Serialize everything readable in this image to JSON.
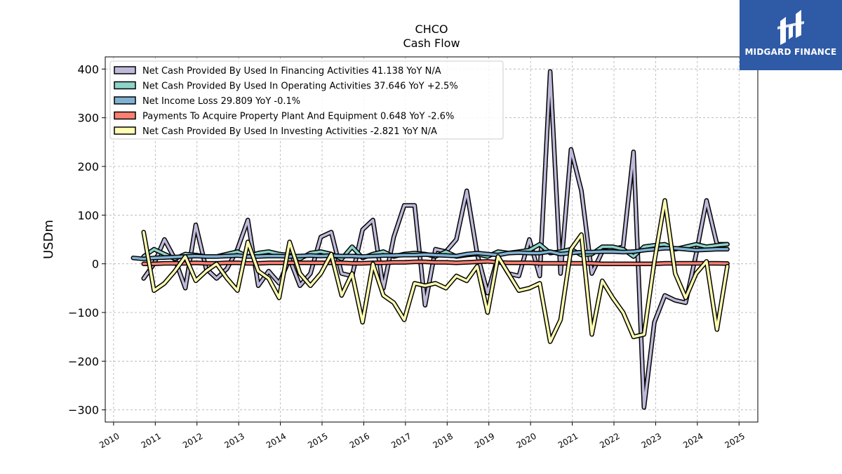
{
  "chart_data": {
    "type": "line",
    "title": "CHCO",
    "subtitle": "Cash Flow",
    "ylabel": "USDm",
    "xlabel": "",
    "ylim": [
      -325,
      425
    ],
    "xlim": [
      2009.8,
      2025.45
    ],
    "yticks": [
      -300,
      -200,
      -100,
      0,
      100,
      200,
      300,
      400
    ],
    "ytick_labels": [
      "−300",
      "−200",
      "−100",
      "0",
      "100",
      "200",
      "300",
      "400"
    ],
    "xticks": [
      2010,
      2011,
      2012,
      2013,
      2014,
      2015,
      2016,
      2017,
      2018,
      2019,
      2020,
      2021,
      2022,
      2023,
      2024,
      2025
    ],
    "xtick_labels": [
      "2010",
      "2011",
      "2012",
      "2013",
      "2014",
      "2015",
      "2016",
      "2017",
      "2018",
      "2019",
      "2020",
      "2021",
      "2022",
      "2023",
      "2024",
      "2025"
    ],
    "grid": true,
    "legend_position": "top-left",
    "series": [
      {
        "name": "Net Cash Provided By Used In Financing Activities",
        "legend": "Net Cash Provided By Used In Financing Activities  41.138 YoY N/A",
        "color": "#bebada",
        "x": [
          2010.72,
          2010.97,
          2011.22,
          2011.47,
          2011.72,
          2011.97,
          2012.22,
          2012.47,
          2012.72,
          2012.97,
          2013.22,
          2013.47,
          2013.72,
          2013.97,
          2014.22,
          2014.47,
          2014.72,
          2014.97,
          2015.22,
          2015.47,
          2015.72,
          2015.97,
          2016.22,
          2016.47,
          2016.72,
          2016.97,
          2017.22,
          2017.47,
          2017.72,
          2017.97,
          2018.22,
          2018.47,
          2018.72,
          2018.97,
          2019.22,
          2019.47,
          2019.72,
          2019.97,
          2020.22,
          2020.47,
          2020.72,
          2020.97,
          2021.22,
          2021.47,
          2021.72,
          2021.97,
          2022.22,
          2022.47,
          2022.72,
          2022.97,
          2023.22,
          2023.47,
          2023.72,
          2023.97,
          2024.22,
          2024.47,
          2024.72
        ],
        "values": [
          -30,
          0,
          50,
          10,
          -50,
          80,
          -10,
          -30,
          -10,
          30,
          90,
          -45,
          -15,
          -40,
          10,
          -45,
          -20,
          55,
          65,
          -20,
          -25,
          70,
          90,
          -50,
          55,
          120,
          120,
          -85,
          30,
          25,
          50,
          150,
          20,
          -60,
          15,
          -20,
          -25,
          50,
          -25,
          395,
          -20,
          235,
          150,
          -20,
          25,
          30,
          35,
          230,
          -295,
          -120,
          -65,
          -75,
          -80,
          20,
          130,
          40,
          40
        ]
      },
      {
        "name": "Net Cash Provided By Used In Operating Activities",
        "legend": "Net Cash Provided By Used In Operating Activities  37.646 YoY +2.5%",
        "color": "#8dd3c7",
        "x": [
          2010.72,
          2010.97,
          2011.22,
          2011.47,
          2011.72,
          2011.97,
          2012.22,
          2012.47,
          2012.72,
          2012.97,
          2013.22,
          2013.47,
          2013.72,
          2013.97,
          2014.22,
          2014.47,
          2014.72,
          2014.97,
          2015.22,
          2015.47,
          2015.72,
          2015.97,
          2016.22,
          2016.47,
          2016.72,
          2016.97,
          2017.22,
          2017.47,
          2017.72,
          2017.97,
          2018.22,
          2018.47,
          2018.72,
          2018.97,
          2019.22,
          2019.47,
          2019.72,
          2019.97,
          2020.22,
          2020.47,
          2020.72,
          2020.97,
          2021.22,
          2021.47,
          2021.72,
          2021.97,
          2022.22,
          2022.47,
          2022.72,
          2022.97,
          2023.22,
          2023.47,
          2023.72,
          2023.97,
          2024.22,
          2024.47,
          2024.72
        ],
        "values": [
          15,
          30,
          20,
          10,
          20,
          18,
          15,
          15,
          20,
          25,
          15,
          22,
          25,
          20,
          18,
          10,
          22,
          25,
          20,
          10,
          35,
          12,
          20,
          25,
          15,
          20,
          22,
          20,
          15,
          25,
          15,
          18,
          20,
          15,
          25,
          22,
          25,
          28,
          40,
          22,
          25,
          30,
          18,
          20,
          35,
          35,
          30,
          15,
          35,
          38,
          40,
          30,
          35,
          40,
          35,
          38,
          40
        ]
      },
      {
        "name": "Net Income Loss",
        "legend": "Net Income Loss  29.809 YoY -0.1%",
        "color": "#80b1d3",
        "x": [
          2010.47,
          2010.72,
          2010.97,
          2011.22,
          2011.47,
          2011.72,
          2011.97,
          2012.22,
          2012.47,
          2012.72,
          2012.97,
          2013.22,
          2013.47,
          2013.72,
          2013.97,
          2014.22,
          2014.47,
          2014.72,
          2014.97,
          2015.22,
          2015.47,
          2015.72,
          2015.97,
          2016.22,
          2016.47,
          2016.72,
          2016.97,
          2017.22,
          2017.47,
          2017.72,
          2017.97,
          2018.22,
          2018.47,
          2018.72,
          2018.97,
          2019.22,
          2019.47,
          2019.72,
          2019.97,
          2020.22,
          2020.47,
          2020.72,
          2020.97,
          2021.22,
          2021.47,
          2021.72,
          2021.97,
          2022.22,
          2022.47,
          2022.72,
          2022.97,
          2023.22,
          2023.47,
          2023.72,
          2023.97,
          2024.22,
          2024.47,
          2024.72
        ],
        "values": [
          12,
          10,
          12,
          13,
          14,
          15,
          16,
          15,
          15,
          16,
          17,
          15,
          15,
          16,
          16,
          15,
          16,
          17,
          16,
          17,
          16,
          16,
          15,
          16,
          17,
          17,
          18,
          18,
          19,
          18,
          17,
          16,
          20,
          22,
          20,
          18,
          22,
          23,
          22,
          22,
          25,
          20,
          22,
          24,
          24,
          25,
          25,
          24,
          25,
          28,
          30,
          32,
          32,
          30,
          28,
          29,
          30,
          30
        ]
      },
      {
        "name": "Payments To Acquire Property Plant And Equipment",
        "legend": "Payments To Acquire Property Plant And Equipment  0.648 YoY -2.6%",
        "color": "#fb8072",
        "x": [
          2010.72,
          2010.97,
          2011.22,
          2011.47,
          2011.72,
          2011.97,
          2012.22,
          2012.47,
          2012.72,
          2012.97,
          2013.22,
          2013.47,
          2013.72,
          2013.97,
          2014.22,
          2014.47,
          2014.72,
          2014.97,
          2015.22,
          2015.47,
          2015.72,
          2015.97,
          2016.22,
          2016.47,
          2016.72,
          2016.97,
          2017.22,
          2017.47,
          2017.72,
          2017.97,
          2018.22,
          2018.47,
          2018.72,
          2018.97,
          2019.22,
          2019.47,
          2019.72,
          2019.97,
          2020.22,
          2020.47,
          2020.72,
          2020.97,
          2021.22,
          2021.47,
          2021.72,
          2021.97,
          2022.22,
          2022.47,
          2022.72,
          2022.97,
          2023.22,
          2023.47,
          2023.72,
          2023.97,
          2024.22,
          2024.47,
          2024.72
        ],
        "values": [
          0,
          0,
          1,
          1,
          1,
          2,
          1,
          1,
          2,
          2,
          1,
          1,
          2,
          2,
          2,
          2,
          2,
          2,
          2,
          2,
          1,
          1,
          2,
          2,
          3,
          3,
          4,
          4,
          3,
          3,
          2,
          3,
          4,
          5,
          3,
          2,
          2,
          2,
          1,
          1,
          1,
          1,
          1,
          1,
          0,
          0,
          0,
          0,
          0,
          0,
          1,
          1,
          1,
          1,
          1,
          1,
          0.6
        ]
      },
      {
        "name": "Net Cash Provided By Used In Investing Activities",
        "legend": "Net Cash Provided By Used In Investing Activities  -2.821 YoY N/A",
        "color": "#ffffb3",
        "x": [
          2010.72,
          2010.97,
          2011.22,
          2011.47,
          2011.72,
          2011.97,
          2012.22,
          2012.47,
          2012.72,
          2012.97,
          2013.22,
          2013.47,
          2013.72,
          2013.97,
          2014.22,
          2014.47,
          2014.72,
          2014.97,
          2015.22,
          2015.47,
          2015.72,
          2015.97,
          2016.22,
          2016.47,
          2016.72,
          2016.97,
          2017.22,
          2017.47,
          2017.72,
          2017.97,
          2018.22,
          2018.47,
          2018.72,
          2018.97,
          2019.22,
          2019.47,
          2019.72,
          2019.97,
          2020.22,
          2020.47,
          2020.72,
          2020.97,
          2021.22,
          2021.47,
          2021.72,
          2021.97,
          2022.22,
          2022.47,
          2022.72,
          2022.97,
          2023.22,
          2023.47,
          2023.72,
          2023.97,
          2024.22,
          2024.47,
          2024.72
        ],
        "values": [
          65,
          -55,
          -40,
          -15,
          15,
          -35,
          -15,
          0,
          -30,
          -55,
          45,
          -15,
          -30,
          -70,
          45,
          -20,
          -45,
          -20,
          20,
          -65,
          -20,
          -120,
          0,
          -65,
          -80,
          -115,
          -40,
          -45,
          -40,
          -50,
          -25,
          -35,
          -5,
          -100,
          15,
          -20,
          -55,
          -50,
          -40,
          -160,
          -115,
          30,
          60,
          -145,
          -35,
          -70,
          -100,
          -150,
          -145,
          5,
          130,
          -20,
          -70,
          -20,
          5,
          -135,
          -5
        ]
      }
    ]
  },
  "logo": {
    "text": "MIDGARD FINANCE",
    "color": "#2f5aa6"
  }
}
